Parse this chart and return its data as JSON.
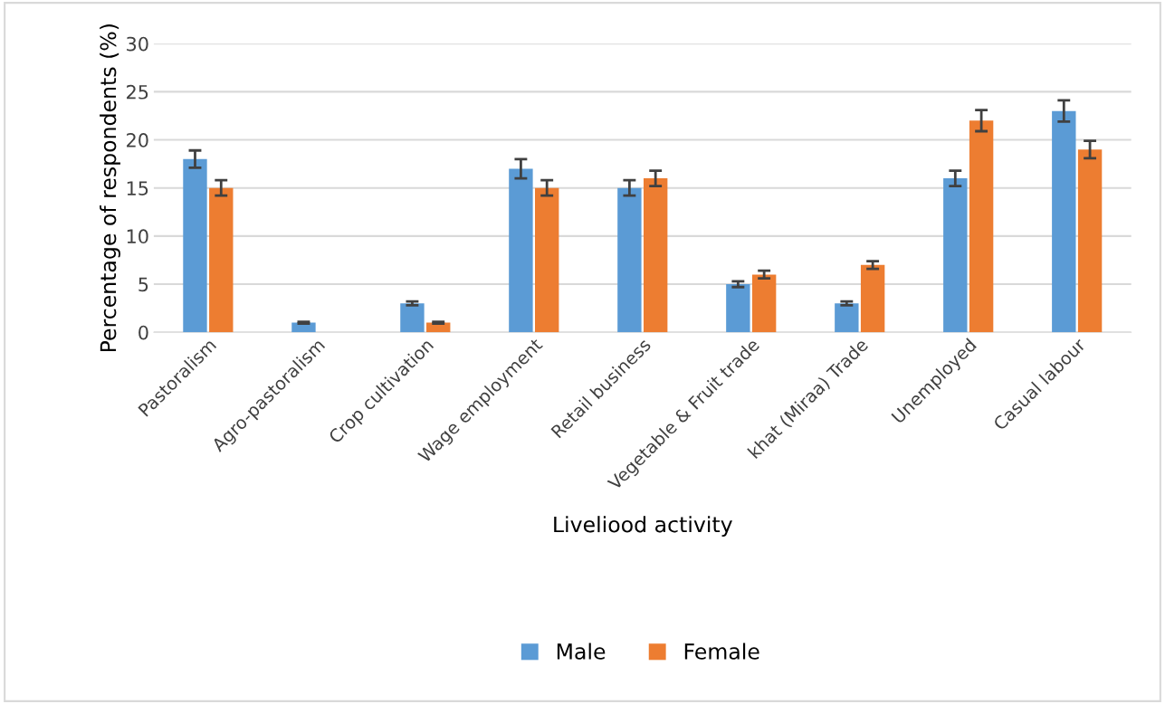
{
  "chart_data": {
    "type": "bar",
    "xlabel": "Liveliood activity",
    "ylabel": "Percentage of respondents (%)",
    "categories": [
      "Pastoralism",
      "Agro-pastoralism",
      "Crop cultivation",
      "Wage employment",
      "Retail business",
      "Vegetable & Fruit trade",
      "khat (Miraa) Trade",
      "Unemployed",
      "Casual labour"
    ],
    "series": [
      {
        "name": "Male",
        "color": "#5b9bd5",
        "values": [
          18,
          1,
          3,
          17,
          15,
          5,
          3,
          16,
          23
        ],
        "errors": [
          0.9,
          0.1,
          0.2,
          1,
          0.8,
          0.3,
          0.2,
          0.8,
          1.1
        ]
      },
      {
        "name": "Female",
        "color": "#ed7d31",
        "values": [
          15,
          0,
          1,
          15,
          16,
          6,
          7,
          22,
          19
        ],
        "errors": [
          0.8,
          null,
          0.1,
          0.8,
          0.8,
          0.4,
          0.4,
          1.1,
          0.9
        ]
      }
    ],
    "ylim": [
      0,
      30
    ],
    "yticks": [
      0,
      5,
      10,
      15,
      20,
      25,
      30
    ],
    "grid": "y",
    "legend": "bottom"
  }
}
